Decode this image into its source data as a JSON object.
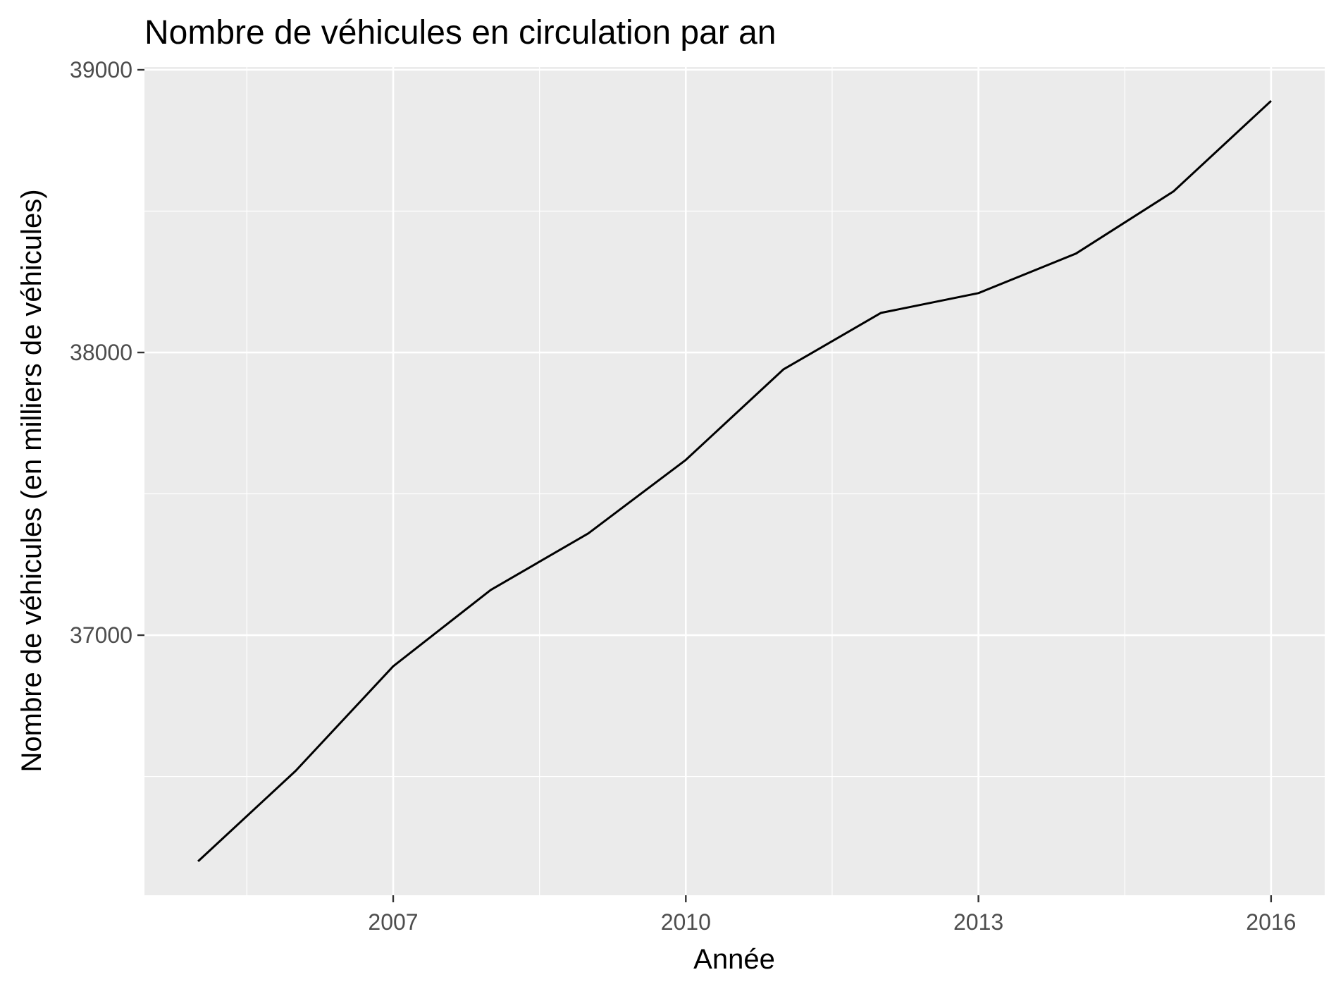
{
  "chart_data": {
    "type": "line",
    "title": "Nombre de véhicules en circulation par an",
    "xlabel": "Année",
    "ylabel": "Nombre de véhicules (en milliers de véhicules)",
    "x": [
      2005,
      2006,
      2007,
      2008,
      2009,
      2010,
      2011,
      2012,
      2013,
      2014,
      2015,
      2016
    ],
    "y": [
      36200,
      36520,
      36890,
      37160,
      37360,
      37620,
      37940,
      38140,
      38210,
      38350,
      38570,
      38890
    ],
    "xlim": [
      2004.45,
      2016.55
    ],
    "ylim": [
      36080,
      39010
    ],
    "x_ticks": [
      2007,
      2010,
      2013,
      2016
    ],
    "x_tick_labels": [
      "2007",
      "2010",
      "2013",
      "2016"
    ],
    "y_ticks": [
      37000,
      38000,
      39000
    ],
    "y_tick_labels": [
      "37000",
      "38000",
      "39000"
    ],
    "grid": true,
    "colors": {
      "panel_background": "#ebebeb",
      "grid_major": "#ffffff",
      "grid_minor": "#ffffff",
      "line": "#000000",
      "tick_label": "#4d4d4d"
    }
  }
}
